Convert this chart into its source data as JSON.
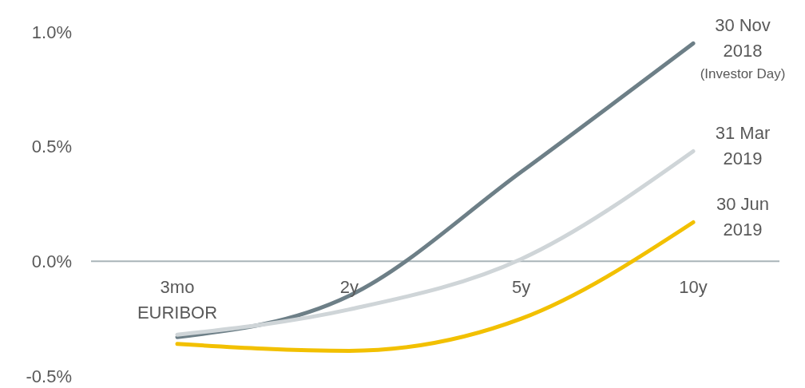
{
  "chart_data": {
    "type": "line",
    "categories": [
      "3mo EURIBOR",
      "2y",
      "5y",
      "10y"
    ],
    "series": [
      {
        "name": "30 Nov 2018",
        "color": "#6d7f87",
        "values": [
          -0.33,
          -0.15,
          0.39,
          0.95
        ]
      },
      {
        "name": "31 Mar 2019",
        "color": "#cfd5d8",
        "values": [
          -0.32,
          -0.21,
          0.01,
          0.48
        ]
      },
      {
        "name": "30 Jun 2019",
        "color": "#f2c000",
        "values": [
          -0.36,
          -0.39,
          -0.25,
          0.17
        ]
      }
    ],
    "ylim": [
      -0.5,
      1.0
    ],
    "yticks": [
      {
        "value": -0.5,
        "label": "-0.5%"
      },
      {
        "value": 0,
        "label": "0.0%"
      },
      {
        "value": 0.5,
        "label": "0.5%"
      },
      {
        "value": 1.0,
        "label": "1.0%"
      }
    ],
    "annotations": [
      {
        "text": "(Investor Day)",
        "x": "10y",
        "y": 0.95
      }
    ],
    "grid": false,
    "legend": false,
    "marker": "none",
    "line_style": "solid"
  }
}
